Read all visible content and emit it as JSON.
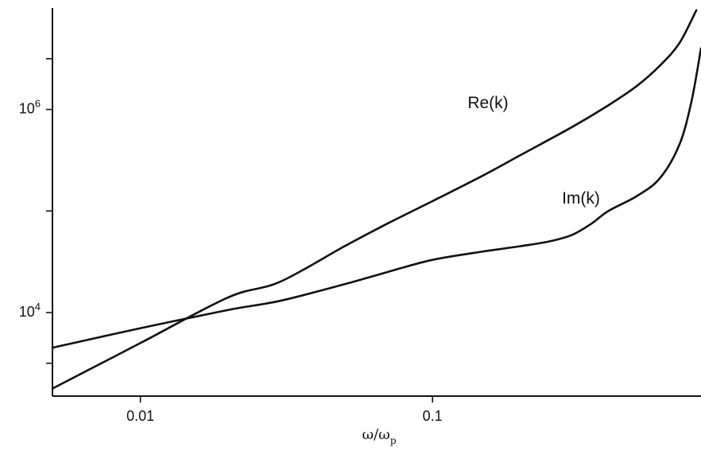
{
  "chart_data": {
    "type": "line",
    "title": "",
    "xlabel": "ω/ω_p",
    "xlabel_parts": {
      "main": "ω/ω",
      "subscript": "p"
    },
    "ylabel": "",
    "x_scale": "log",
    "y_scale": "log",
    "xlim": [
      0.005,
      0.83
    ],
    "ylim": [
      1500,
      10000000
    ],
    "grid": false,
    "legend": "none",
    "x_ticks": [
      {
        "value": 0.01,
        "label": "0.01"
      },
      {
        "value": 0.1,
        "label": "0.1"
      }
    ],
    "y_ticks": [
      {
        "value": 10000,
        "base": "10",
        "exponent": "4"
      },
      {
        "value": 1000000,
        "base": "10",
        "exponent": "6"
      }
    ],
    "y_minor_ticks": [
      3162,
      100000,
      3162278
    ],
    "series": [
      {
        "name": "Re(k)",
        "color": "#111111",
        "points": [
          [
            0.005,
            1780
          ],
          [
            0.01,
            5000
          ],
          [
            0.02,
            14100
          ],
          [
            0.03,
            20000
          ],
          [
            0.05,
            45000
          ],
          [
            0.07,
            75000
          ],
          [
            0.1,
            125000
          ],
          [
            0.15,
            226000
          ],
          [
            0.2,
            355000
          ],
          [
            0.3,
            670000
          ],
          [
            0.4,
            1100000
          ],
          [
            0.5,
            1700000
          ],
          [
            0.6,
            2700000
          ],
          [
            0.7,
            4500000
          ],
          [
            0.8,
            9500000
          ]
        ]
      },
      {
        "name": "Im(k)",
        "color": "#111111",
        "points": [
          [
            0.005,
            4500
          ],
          [
            0.01,
            7000
          ],
          [
            0.02,
            10600
          ],
          [
            0.03,
            13000
          ],
          [
            0.05,
            19000
          ],
          [
            0.07,
            25000
          ],
          [
            0.1,
            33000
          ],
          [
            0.15,
            40000
          ],
          [
            0.2,
            45000
          ],
          [
            0.25,
            50000
          ],
          [
            0.3,
            58000
          ],
          [
            0.35,
            75000
          ],
          [
            0.4,
            100000
          ],
          [
            0.5,
            140000
          ],
          [
            0.6,
            210000
          ],
          [
            0.7,
            450000
          ],
          [
            0.77,
            1200000
          ],
          [
            0.83,
            4000000
          ]
        ]
      }
    ],
    "annotations": [
      {
        "text": "Re(k)",
        "series": "Re(k)"
      },
      {
        "text": "Im(k)",
        "series": "Im(k)"
      }
    ]
  }
}
